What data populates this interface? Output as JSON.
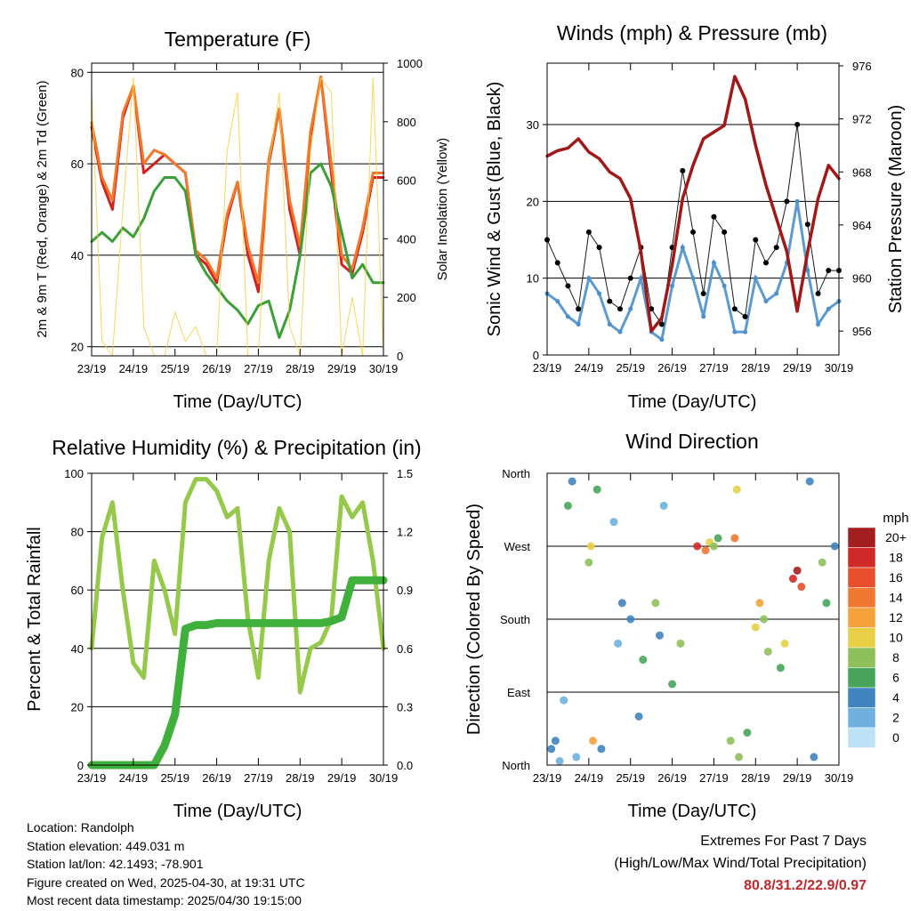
{
  "figure": {
    "x_ticks": [
      "23/19",
      "24/19",
      "25/19",
      "26/19",
      "27/19",
      "28/19",
      "29/19",
      "30/19"
    ]
  },
  "chart_data": [
    {
      "id": "temperature",
      "type": "line",
      "title": "Temperature (F)",
      "xlabel": "Time (Day/UTC)",
      "ylabel": "2m & 9m T (Red, Orange) & 2m Td (Green)",
      "ylabel_right": "Solar Insolation (Yellow)",
      "ylim": [
        18,
        82
      ],
      "yticks": [
        20,
        40,
        60,
        80
      ],
      "ylim_right": [
        0,
        1000
      ],
      "yticks_right": [
        0,
        200,
        400,
        600,
        800,
        1000
      ],
      "grid": true,
      "x": [
        0,
        0.25,
        0.5,
        0.75,
        1.0,
        1.25,
        1.5,
        1.75,
        2.0,
        2.25,
        2.5,
        2.75,
        3.0,
        3.25,
        3.5,
        3.75,
        4.0,
        4.25,
        4.5,
        4.75,
        5.0,
        5.25,
        5.5,
        5.75,
        6.0,
        6.25,
        6.5,
        6.75,
        7.0
      ],
      "series": [
        {
          "name": "2m T",
          "color": "#d62020",
          "axis": "left",
          "values": [
            68,
            56,
            50,
            70,
            77,
            58,
            60,
            62,
            60,
            58,
            40,
            38,
            34,
            48,
            56,
            40,
            32,
            60,
            72,
            50,
            40,
            66,
            79,
            58,
            38,
            36,
            45,
            57,
            57
          ]
        },
        {
          "name": "9m T",
          "color": "#f07828",
          "axis": "left",
          "values": [
            69,
            57,
            52,
            71,
            77,
            60,
            63,
            62,
            60,
            58,
            41,
            39,
            35,
            49,
            56,
            42,
            34,
            61,
            72,
            52,
            42,
            67,
            79,
            60,
            40,
            37,
            46,
            58,
            58
          ]
        },
        {
          "name": "2m Td",
          "color": "#3aa035",
          "axis": "left",
          "values": [
            43,
            45,
            43,
            46,
            44,
            48,
            54,
            57,
            57,
            54,
            40,
            36,
            33,
            30,
            28,
            25,
            29,
            30,
            22,
            28,
            40,
            58,
            60,
            55,
            45,
            35,
            38,
            34,
            34
          ]
        },
        {
          "name": "Solar Insolation",
          "color": "#f5d040",
          "axis": "right",
          "values": [
            900,
            50,
            0,
            500,
            950,
            100,
            0,
            0,
            150,
            50,
            100,
            0,
            0,
            700,
            900,
            0,
            0,
            650,
            900,
            100,
            0,
            700,
            950,
            900,
            0,
            200,
            0,
            950,
            0
          ]
        }
      ]
    },
    {
      "id": "winds",
      "type": "scatter",
      "title": "Winds (mph) & Pressure (mb)",
      "xlabel": "Time (Day/UTC)",
      "ylabel": "Sonic Wind & Gust (Blue, Black)",
      "ylabel_right": "Station Pressure (Maroon)",
      "ylim": [
        0,
        38
      ],
      "yticks": [
        0,
        10,
        20,
        30
      ],
      "ylim_right": [
        954.2,
        976.2
      ],
      "yticks_right": [
        956,
        960,
        964,
        968,
        972,
        976
      ],
      "grid": true,
      "x": [
        0,
        0.25,
        0.5,
        0.75,
        1.0,
        1.25,
        1.5,
        1.75,
        2.0,
        2.25,
        2.5,
        2.75,
        3.0,
        3.25,
        3.5,
        3.75,
        4.0,
        4.25,
        4.5,
        4.75,
        5.0,
        5.25,
        5.5,
        5.75,
        6.0,
        6.25,
        6.5,
        6.75,
        7.0
      ],
      "series": [
        {
          "name": "Sonic Wind",
          "color": "#4a90cc",
          "axis": "left",
          "values": [
            8,
            7,
            5,
            4,
            10,
            8,
            4,
            3,
            6,
            10,
            3,
            2,
            9,
            14,
            10,
            5,
            12,
            9,
            3,
            3,
            10,
            7,
            8,
            12,
            20,
            11,
            4,
            6,
            7
          ]
        },
        {
          "name": "Gust",
          "color": "#000000",
          "axis": "left",
          "values": [
            15,
            12,
            9,
            6,
            16,
            14,
            7,
            6,
            10,
            14,
            6,
            4,
            14,
            24,
            16,
            8,
            18,
            16,
            6,
            5,
            15,
            12,
            14,
            20,
            30,
            17,
            8,
            11,
            11
          ]
        },
        {
          "name": "Station Pressure",
          "color": "#a01818",
          "axis": "right",
          "values": [
            969.2,
            969.6,
            969.8,
            970.5,
            969.5,
            969.0,
            968.0,
            967.5,
            966.0,
            962.0,
            956.0,
            957.0,
            961.0,
            966.0,
            968.5,
            970.5,
            971.0,
            971.5,
            975.2,
            973.5,
            970.0,
            967.0,
            964.5,
            962.0,
            957.5,
            962.0,
            966.0,
            968.5,
            967.5
          ]
        }
      ]
    },
    {
      "id": "humidity",
      "type": "line",
      "title": "Relative Humidity (%) & Precipitation (in)",
      "xlabel": "Time (Day/UTC)",
      "ylabel": "Percent & Total Rainfall",
      "ylim": [
        0,
        100
      ],
      "yticks": [
        0,
        20,
        40,
        60,
        80,
        100
      ],
      "ylim_right": [
        0,
        1.5
      ],
      "yticks_right": [
        "0.0",
        "0.3",
        "0.6",
        "0.9",
        "1.2",
        "1.5"
      ],
      "grid": true,
      "x": [
        0,
        0.25,
        0.5,
        0.75,
        1.0,
        1.25,
        1.5,
        1.75,
        2.0,
        2.25,
        2.5,
        2.75,
        3.0,
        3.25,
        3.5,
        3.75,
        4.0,
        4.25,
        4.5,
        4.75,
        5.0,
        5.25,
        5.5,
        5.75,
        6.0,
        6.25,
        6.5,
        6.75,
        7.0
      ],
      "series": [
        {
          "name": "Relative Humidity",
          "color": "#96c84a",
          "axis": "left",
          "values": [
            40,
            78,
            90,
            60,
            35,
            30,
            70,
            60,
            45,
            90,
            98,
            98,
            94,
            85,
            88,
            50,
            30,
            70,
            88,
            80,
            25,
            40,
            42,
            50,
            92,
            85,
            90,
            70,
            40
          ]
        },
        {
          "name": "Total Precipitation",
          "color": "#3fb03c",
          "axis": "right",
          "values": [
            0,
            0,
            0,
            0,
            0,
            0,
            0,
            0.1,
            0.26,
            0.7,
            0.72,
            0.72,
            0.73,
            0.73,
            0.73,
            0.73,
            0.73,
            0.73,
            0.73,
            0.73,
            0.73,
            0.73,
            0.73,
            0.74,
            0.76,
            0.95,
            0.95,
            0.95,
            0.95
          ]
        }
      ]
    },
    {
      "id": "wind_direction",
      "type": "scatter",
      "title": "Wind Direction",
      "xlabel": "Time (Day/UTC)",
      "ylabel": "Direction (Colored By Speed)",
      "y_categories": [
        "North",
        "East",
        "South",
        "West",
        "North"
      ],
      "ylim": [
        0,
        360
      ],
      "grid": true,
      "colorbar": {
        "title": "mph",
        "labels": [
          "20+",
          "18",
          "16",
          "14",
          "12",
          "10",
          "8",
          "6",
          "4",
          "2",
          "0"
        ],
        "colors": [
          "#a31e1e",
          "#cf2a27",
          "#e8502c",
          "#f07830",
          "#f5a23c",
          "#e8cf46",
          "#8ec05a",
          "#46a55a",
          "#3f84bf",
          "#6fb0de",
          "#bde2f5"
        ]
      },
      "series": [
        {
          "name": "Direction",
          "points": [
            [
              0.1,
              20,
              4
            ],
            [
              0.2,
              30,
              3
            ],
            [
              0.3,
              5,
              2
            ],
            [
              0.4,
              80,
              2
            ],
            [
              0.5,
              320,
              5
            ],
            [
              0.6,
              350,
              4
            ],
            [
              0.7,
              10,
              2
            ],
            [
              1.0,
              250,
              8
            ],
            [
              1.05,
              270,
              10
            ],
            [
              1.1,
              30,
              12
            ],
            [
              1.2,
              340,
              6
            ],
            [
              1.3,
              20,
              4
            ],
            [
              1.6,
              300,
              2
            ],
            [
              1.7,
              150,
              1
            ],
            [
              1.8,
              200,
              3
            ],
            [
              2.0,
              180,
              3
            ],
            [
              2.2,
              60,
              4
            ],
            [
              2.3,
              130,
              6
            ],
            [
              2.6,
              200,
              8
            ],
            [
              2.7,
              160,
              4
            ],
            [
              2.8,
              320,
              2
            ],
            [
              3.0,
              100,
              5
            ],
            [
              3.2,
              150,
              7
            ],
            [
              3.6,
              270,
              17
            ],
            [
              3.8,
              265,
              14
            ],
            [
              3.9,
              275,
              10
            ],
            [
              4.0,
              270,
              8
            ],
            [
              4.1,
              280,
              6
            ],
            [
              4.4,
              30,
              8
            ],
            [
              4.5,
              280,
              14
            ],
            [
              4.55,
              340,
              9
            ],
            [
              4.6,
              10,
              8
            ],
            [
              4.8,
              40,
              5
            ],
            [
              5.0,
              170,
              10
            ],
            [
              5.1,
              200,
              12
            ],
            [
              5.2,
              180,
              8
            ],
            [
              5.3,
              140,
              7
            ],
            [
              5.6,
              120,
              6
            ],
            [
              5.7,
              150,
              10
            ],
            [
              5.9,
              230,
              18
            ],
            [
              6.0,
              240,
              20
            ],
            [
              6.1,
              220,
              16
            ],
            [
              6.3,
              350,
              4
            ],
            [
              6.4,
              10,
              3
            ],
            [
              6.6,
              250,
              7
            ],
            [
              6.7,
              200,
              6
            ],
            [
              6.9,
              270,
              4
            ]
          ]
        }
      ]
    }
  ],
  "info": {
    "location": "Location: Randolph",
    "elevation": "Station elevation: 449.031 m",
    "latlon": "Station lat/lon: 42.1493; -78.901",
    "created": "Figure created on Wed, 2025-04-30, at 19:31 UTC",
    "latest": "Most recent data timestamp: 2025/04/30 19:15:00"
  },
  "extremes": {
    "title": "Extremes For Past 7 Days",
    "subtitle": "(High/Low/Max Wind/Total Precipitation)",
    "values": "80.8/31.2/22.9/0.97"
  }
}
